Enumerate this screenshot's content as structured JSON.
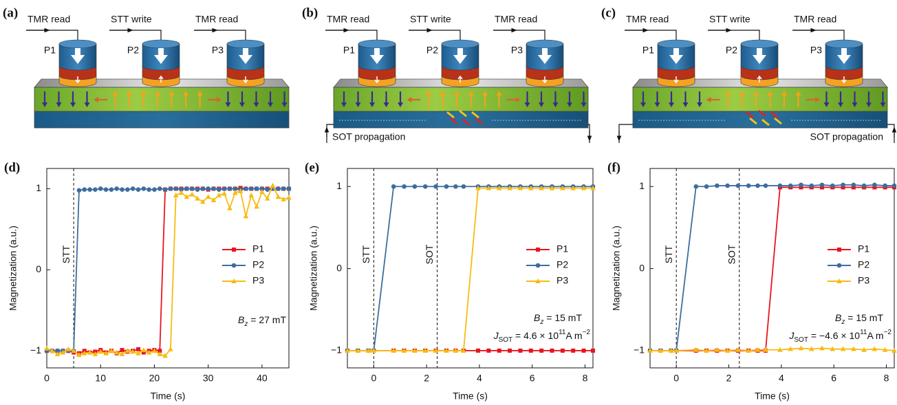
{
  "diagrams": [
    {
      "label": "(a)",
      "operations": [
        "TMR read",
        "STT write",
        "TMR read"
      ],
      "pillars": [
        "P1",
        "P2",
        "P3"
      ]
    },
    {
      "label": "(b)",
      "operations": [
        "TMR read",
        "STT write",
        "TMR read"
      ],
      "pillars": [
        "P1",
        "P2",
        "P3"
      ],
      "propagation": "SOT propagation"
    },
    {
      "label": "(c)",
      "operations": [
        "TMR read",
        "STT write",
        "TMR read"
      ],
      "pillars": [
        "P1",
        "P2",
        "P3"
      ],
      "propagation": "SOT propagation"
    }
  ],
  "chart_data": [
    {
      "type": "line",
      "panel": "(d)",
      "x_label": "Time (s)",
      "y_label": "Magnetization (a.u.)",
      "x": [
        0,
        1,
        2,
        3,
        4,
        5,
        6,
        7,
        8,
        9,
        10,
        11,
        12,
        13,
        14,
        15,
        16,
        17,
        18,
        19,
        20,
        21,
        22,
        23,
        24,
        25,
        26,
        27,
        28,
        29,
        30,
        31,
        32,
        33,
        34,
        35,
        36,
        37,
        38,
        39,
        40,
        41,
        42,
        43,
        44,
        45
      ],
      "series": [
        {
          "name": "P1",
          "color": "#e8141e",
          "marker": "square",
          "values": [
            -1,
            -1,
            -1,
            -1,
            -1,
            -1.02,
            -1.03,
            -1.0,
            -1.02,
            -1.01,
            -0.99,
            -1.02,
            -1.0,
            -1.03,
            -0.99,
            -1.01,
            -1.0,
            -0.98,
            -1.02,
            -1.0,
            -0.99,
            -1.0,
            0.99,
            1,
            1,
            1,
            1,
            1,
            1,
            1,
            0.99,
            1,
            1,
            1,
            1,
            1,
            1.01,
            1,
            1,
            1,
            1,
            1,
            1,
            1,
            1,
            1
          ]
        },
        {
          "name": "P2",
          "color": "#3d6d9e",
          "marker": "circle",
          "values": [
            -1,
            -1,
            -1,
            -1,
            -1,
            -1,
            0.98,
            0.99,
            0.99,
            0.99,
            1,
            0.99,
            0.99,
            1,
            0.99,
            0.99,
            1,
            0.99,
            1,
            0.99,
            0.99,
            1,
            0.99,
            1,
            1,
            0.99,
            1,
            1,
            0.99,
            1,
            1,
            1,
            0.99,
            1,
            1,
            1,
            0.99,
            1,
            1,
            1,
            1,
            0.99,
            1,
            1,
            1,
            1
          ]
        },
        {
          "name": "P3",
          "color": "#f7bb12",
          "marker": "triangle",
          "values": [
            -0.97,
            -1.0,
            -1.04,
            -1.02,
            -0.98,
            -1.0,
            -1.05,
            -1.03,
            -1.02,
            -1.04,
            -1.01,
            -1.03,
            -1.0,
            -1.02,
            -1.04,
            -1.0,
            -1.01,
            -1.03,
            -0.99,
            -1.02,
            -1.0,
            -1.04,
            -1.06,
            -0.98,
            0.92,
            0.95,
            0.9,
            0.93,
            0.88,
            0.84,
            0.9,
            0.86,
            0.92,
            0.94,
            0.76,
            0.95,
            0.97,
            0.66,
            0.92,
            0.78,
            0.96,
            0.88,
            1.04,
            0.9,
            0.87,
            0.89
          ]
        }
      ],
      "xlim": [
        0,
        45
      ],
      "ylim": [
        -1.21,
        1.25
      ],
      "xticks": [
        0,
        10,
        20,
        30,
        40
      ],
      "yticks": [
        {
          "value": -1,
          "label": "−1"
        },
        0,
        1
      ],
      "legend": "right",
      "vlines": [
        {
          "x": 5,
          "label": "STT"
        }
      ],
      "field": {
        "symbol": "B",
        "subscript": "z",
        "text": " = 27 mT"
      }
    },
    {
      "type": "line",
      "panel": "(e)",
      "x_label": "Time (s)",
      "y_label": "Magnetization (a.u.)",
      "x": [
        -1,
        -0.6,
        -0.2,
        0,
        0.75,
        1.15,
        1.55,
        1.95,
        2.35,
        2.75,
        3.1,
        3.4,
        3.95,
        4.35,
        4.75,
        5.15,
        5.55,
        5.95,
        6.35,
        6.75,
        7.15,
        7.55,
        7.95,
        8.3
      ],
      "series": [
        {
          "name": "P1",
          "color": "#e8141e",
          "marker": "square",
          "values": [
            -1,
            -1,
            -1,
            -1,
            -1,
            -1,
            -1,
            -1,
            -1,
            -1,
            -1,
            -1,
            -1,
            -1,
            -1,
            -1,
            -1,
            -1,
            -1,
            -1,
            -1,
            -1,
            -1,
            -1
          ]
        },
        {
          "name": "P2",
          "color": "#3d6d9e",
          "marker": "circle",
          "values": [
            -1,
            -1,
            -1,
            -1,
            1,
            1,
            1,
            1,
            1,
            1,
            1,
            1,
            1,
            1,
            1,
            1,
            1,
            1,
            1,
            1,
            1,
            1,
            1,
            1
          ]
        },
        {
          "name": "P3",
          "color": "#f7bb12",
          "marker": "triangle",
          "values": [
            -1,
            -1,
            -1,
            -1,
            -1,
            -1,
            -1,
            -1,
            -1,
            -1,
            -1,
            -1,
            0.98,
            0.98,
            0.98,
            0.98,
            0.98,
            0.98,
            0.98,
            0.98,
            0.98,
            0.98,
            0.98,
            0.98
          ]
        }
      ],
      "xlim": [
        -1,
        8.3
      ],
      "ylim": [
        -1.21,
        1.22
      ],
      "xticks": [
        0,
        2,
        4,
        6,
        8
      ],
      "yticks": [
        {
          "value": -1,
          "label": "−1"
        },
        0,
        1
      ],
      "legend": "right",
      "vlines": [
        {
          "x": 0,
          "label": "STT"
        },
        {
          "x": 2.4,
          "label": "SOT"
        }
      ],
      "field": {
        "symbol": "B",
        "subscript": "z",
        "text": " = 15 mT"
      },
      "current": {
        "symbol": "J",
        "subscript": "SOT",
        "text": " = 4.6 × 10",
        "superscript": "11",
        "unit": "A m",
        "unit_superscript": "−2"
      }
    },
    {
      "type": "line",
      "panel": "(f)",
      "x_label": "Time (s)",
      "y_label": "Magnetization (a.u.)",
      "x": [
        -1,
        -0.6,
        -0.2,
        0,
        0.75,
        1.15,
        1.55,
        1.95,
        2.35,
        2.75,
        3.1,
        3.4,
        3.95,
        4.35,
        4.75,
        5.15,
        5.55,
        5.95,
        6.35,
        6.75,
        7.15,
        7.55,
        7.95,
        8.3
      ],
      "series": [
        {
          "name": "P1",
          "color": "#e8141e",
          "marker": "square",
          "values": [
            -1,
            -1,
            -1,
            -1,
            -1,
            -1,
            -1,
            -1,
            -1,
            -1,
            -1,
            -1,
            0.99,
            0.99,
            0.99,
            0.99,
            0.99,
            0.99,
            0.99,
            0.99,
            0.99,
            0.99,
            0.99,
            0.99
          ]
        },
        {
          "name": "P2",
          "color": "#3d6d9e",
          "marker": "circle",
          "values": [
            -1,
            -1,
            -1,
            -1,
            1,
            1,
            1.01,
            1.01,
            1.01,
            1.01,
            1.01,
            1.01,
            1.01,
            1.01,
            1.02,
            1.01,
            1.02,
            1.01,
            1.02,
            1.02,
            1.01,
            1.02,
            1.01,
            1.01
          ]
        },
        {
          "name": "P3",
          "color": "#f7bb12",
          "marker": "triangle",
          "values": [
            -1,
            -1,
            -1,
            -1,
            -0.99,
            -1,
            -0.99,
            -1,
            -0.99,
            -1,
            -0.99,
            -0.99,
            -0.99,
            -0.98,
            -0.97,
            -0.98,
            -0.97,
            -0.98,
            -0.98,
            -0.98,
            -0.99,
            -0.98,
            -0.99,
            -1.0
          ]
        }
      ],
      "xlim": [
        -1,
        8.3
      ],
      "ylim": [
        -1.21,
        1.22
      ],
      "xticks": [
        0,
        2,
        4,
        6,
        8
      ],
      "yticks": [
        {
          "value": -1,
          "label": "−1"
        },
        0,
        1
      ],
      "legend": "right",
      "vlines": [
        {
          "x": 0,
          "label": "STT"
        },
        {
          "x": 2.4,
          "label": "SOT"
        }
      ],
      "field": {
        "symbol": "B",
        "subscript": "z",
        "text": " = 15 mT"
      },
      "current": {
        "symbol": "J",
        "subscript": "SOT",
        "text": " = −4.6 × 10",
        "superscript": "11",
        "unit": "A m",
        "unit_superscript": "−2"
      }
    }
  ]
}
